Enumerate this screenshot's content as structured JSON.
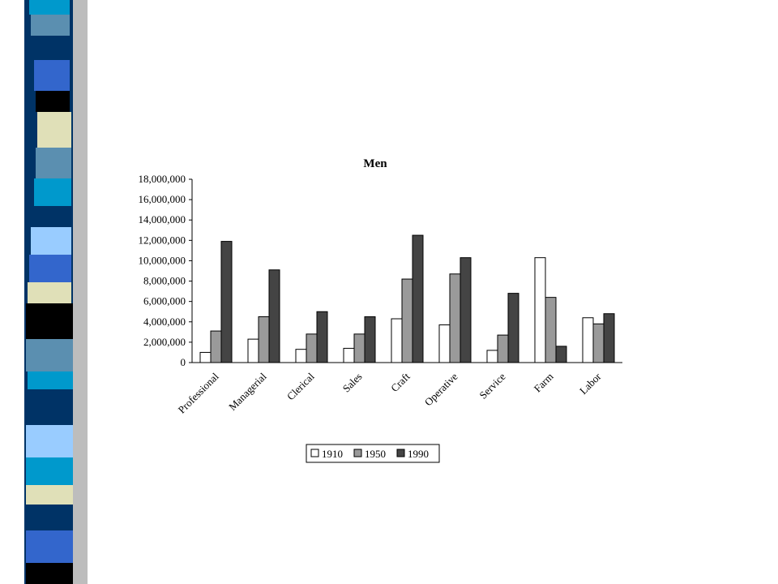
{
  "chart_data": {
    "type": "bar",
    "title": "Men",
    "categories": [
      "Professional",
      "Managerial",
      "Clerical",
      "Sales",
      "Craft",
      "Operative",
      "Service",
      "Farm",
      "Labor"
    ],
    "series": [
      {
        "name": "1910",
        "color": "#ffffff",
        "values": [
          1000000,
          2300000,
          1300000,
          1400000,
          4300000,
          3700000,
          1200000,
          10300000,
          4400000
        ]
      },
      {
        "name": "1950",
        "color": "#9a9a9a",
        "values": [
          3100000,
          4500000,
          2800000,
          2800000,
          8200000,
          8700000,
          2700000,
          6400000,
          3800000
        ]
      },
      {
        "name": "1990",
        "color": "#444444",
        "values": [
          11900000,
          9100000,
          5000000,
          4500000,
          12500000,
          10300000,
          6800000,
          1600000,
          4800000
        ]
      }
    ],
    "ylim": [
      0,
      18000000
    ],
    "yticks": [
      0,
      {
        "value": 2000000,
        "label": "2,000,000"
      },
      {
        "value": 4000000,
        "label": "4,000,000"
      },
      {
        "value": 6000000,
        "label": "6,000,000"
      },
      {
        "value": 8000000,
        "label": "8,000,000"
      },
      {
        "value": 10000000,
        "label": "10,000,000"
      },
      {
        "value": 12000000,
        "label": "12,000,000"
      },
      {
        "value": 14000000,
        "label": "14,000,000"
      },
      {
        "value": 16000000,
        "label": "16,000,000"
      },
      {
        "value": 18000000,
        "label": "18,000,000"
      }
    ],
    "legend": "bottom",
    "grid": false
  }
}
